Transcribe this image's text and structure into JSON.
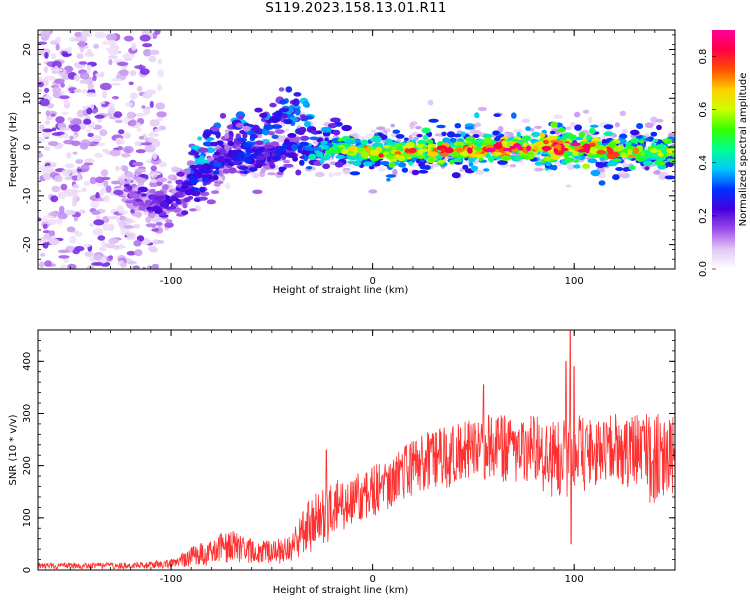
{
  "title": "S119.2023.158.13.01.R11",
  "chart_data": [
    {
      "type": "heatmap",
      "xlabel": "Height of straight line (km)",
      "ylabel": "Frequency (Hz)",
      "xlim": [
        -166,
        150
      ],
      "ylim": [
        -25,
        24
      ],
      "xticks": [
        -100,
        0,
        100
      ],
      "xtick_labels": [
        "-100",
        "0",
        "100"
      ],
      "yticks": [
        -20,
        -10,
        0,
        10,
        20
      ],
      "ytick_labels": [
        "-20",
        "-10",
        "0",
        "10",
        "20"
      ],
      "colorbar": {
        "label": "Normalized spectral amplitude",
        "range": [
          0,
          0.9
        ],
        "ticks": [
          0.0,
          0.2,
          0.4,
          0.6,
          0.8
        ],
        "tick_labels": [
          "0.0",
          "0.2",
          "0.4",
          "0.6",
          "0.8"
        ],
        "colors": [
          "#ffffff",
          "#e2c8f5",
          "#9a4ce8",
          "#4400dd",
          "#0030ff",
          "#00c8ff",
          "#00ff90",
          "#33ff00",
          "#ccff00",
          "#ffd000",
          "#ff5000",
          "#ff0044",
          "#ff0099"
        ]
      },
      "ridge": [
        {
          "x": -118,
          "y": -10,
          "amp": 0.22
        },
        {
          "x": -105,
          "y": -12,
          "amp": 0.3
        },
        {
          "x": -95,
          "y": -9,
          "amp": 0.3
        },
        {
          "x": -85,
          "y": -6,
          "amp": 0.38
        },
        {
          "x": -75,
          "y": -3,
          "amp": 0.35
        },
        {
          "x": -62,
          "y": -2,
          "amp": 0.35
        },
        {
          "x": -50,
          "y": -2,
          "amp": 0.3
        },
        {
          "x": -40,
          "y": 0,
          "amp": 0.38
        },
        {
          "x": -30,
          "y": -1,
          "amp": 0.5
        },
        {
          "x": -20,
          "y": 0,
          "amp": 0.55
        },
        {
          "x": 0,
          "y": -1,
          "amp": 0.7
        },
        {
          "x": 30,
          "y": -1,
          "amp": 0.7
        },
        {
          "x": 70,
          "y": 0,
          "amp": 0.85
        },
        {
          "x": 100,
          "y": 0,
          "amp": 0.8
        },
        {
          "x": 130,
          "y": -1,
          "amp": 0.65
        },
        {
          "x": 150,
          "y": -1,
          "amp": 0.6
        }
      ]
    },
    {
      "type": "line",
      "xlabel": "Height of straight line (km)",
      "ylabel": "SNR (10 * v/v)",
      "xlim": [
        -166,
        150
      ],
      "ylim": [
        0,
        460
      ],
      "xticks": [
        -100,
        0,
        100
      ],
      "xtick_labels": [
        "-100",
        "0",
        "100"
      ],
      "yticks": [
        0,
        100,
        200,
        300,
        400
      ],
      "ytick_labels": [
        "0",
        "100",
        "200",
        "300",
        "400"
      ],
      "line_color": "#ff3030",
      "envelope": [
        {
          "x": -166,
          "lo": 2,
          "hi": 14
        },
        {
          "x": -120,
          "lo": 2,
          "hi": 14
        },
        {
          "x": -100,
          "lo": 4,
          "hi": 20
        },
        {
          "x": -90,
          "lo": 5,
          "hi": 45
        },
        {
          "x": -80,
          "lo": 8,
          "hi": 60
        },
        {
          "x": -70,
          "lo": 15,
          "hi": 80
        },
        {
          "x": -60,
          "lo": 12,
          "hi": 60
        },
        {
          "x": -50,
          "lo": 10,
          "hi": 55
        },
        {
          "x": -40,
          "lo": 12,
          "hi": 70
        },
        {
          "x": -30,
          "lo": 30,
          "hi": 150
        },
        {
          "x": -20,
          "lo": 60,
          "hi": 170
        },
        {
          "x": -10,
          "lo": 90,
          "hi": 180
        },
        {
          "x": 0,
          "lo": 100,
          "hi": 200
        },
        {
          "x": 10,
          "lo": 120,
          "hi": 220
        },
        {
          "x": 20,
          "lo": 140,
          "hi": 250
        },
        {
          "x": 30,
          "lo": 150,
          "hi": 270
        },
        {
          "x": 40,
          "lo": 160,
          "hi": 280
        },
        {
          "x": 50,
          "lo": 165,
          "hi": 290
        },
        {
          "x": 60,
          "lo": 170,
          "hi": 300
        },
        {
          "x": 70,
          "lo": 165,
          "hi": 300
        },
        {
          "x": 80,
          "lo": 165,
          "hi": 300
        },
        {
          "x": 90,
          "lo": 130,
          "hi": 290
        },
        {
          "x": 100,
          "lo": 140,
          "hi": 300
        },
        {
          "x": 110,
          "lo": 160,
          "hi": 290
        },
        {
          "x": 120,
          "lo": 160,
          "hi": 300
        },
        {
          "x": 130,
          "lo": 150,
          "hi": 300
        },
        {
          "x": 140,
          "lo": 120,
          "hi": 300
        },
        {
          "x": 150,
          "lo": 150,
          "hi": 300
        }
      ],
      "peaks": [
        {
          "x": -23,
          "y": 230
        },
        {
          "x": 55,
          "y": 355
        },
        {
          "x": 96,
          "y": 400
        },
        {
          "x": 98,
          "y": 460
        },
        {
          "x": 100,
          "y": 390
        },
        {
          "x": 98.5,
          "y": 50
        }
      ]
    }
  ]
}
